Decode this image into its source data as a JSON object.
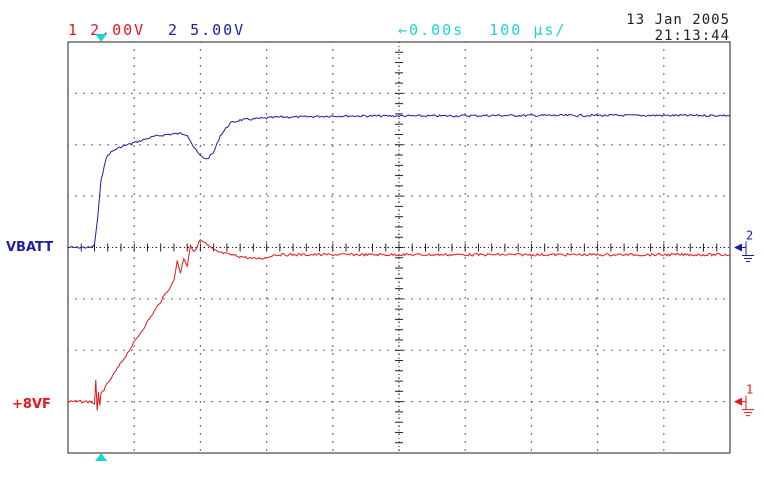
{
  "header": {
    "ch1_num": "1",
    "ch1_scale": "2.00V",
    "ch2_num": "2",
    "ch2_scale": "5.00V",
    "time_offset": "0.00s",
    "time_scale": "100 µs/"
  },
  "date": "13 Jan 2005",
  "time": "21:13:44",
  "labels": {
    "ch2_name": "VBATT",
    "ch1_name": "+8VF",
    "ch2_marker": "2",
    "ch1_marker": "1"
  },
  "colors": {
    "ch1": "#e8161a",
    "ch2": "#1b1fa8",
    "trigger": "#1ed2dc",
    "grid": "#222222"
  },
  "chart_data": {
    "type": "line",
    "grid": {
      "hdiv": 10,
      "vdiv": 8,
      "dotted": true
    },
    "x_unit": "µs",
    "xlim": [
      -50,
      950
    ],
    "trigger_time_us": 0,
    "series": [
      {
        "name": "VBATT",
        "channel": 2,
        "volts_per_div": 5.0,
        "ground_div": 0,
        "x": [
          -50,
          -15,
          -10,
          -5,
          0,
          5,
          10,
          20,
          30,
          40,
          50,
          60,
          80,
          100,
          120,
          130,
          140,
          150,
          160,
          170,
          180,
          195,
          210,
          230,
          250,
          270,
          300,
          350,
          400,
          500,
          600,
          700,
          800,
          900,
          950
        ],
        "y_div": [
          0,
          0,
          0.05,
          0.6,
          1.3,
          1.62,
          1.8,
          1.9,
          1.96,
          2.0,
          2.04,
          2.08,
          2.16,
          2.2,
          2.22,
          2.2,
          1.95,
          1.78,
          1.72,
          1.85,
          2.18,
          2.42,
          2.48,
          2.5,
          2.52,
          2.54,
          2.54,
          2.56,
          2.56,
          2.56,
          2.57,
          2.57,
          2.57,
          2.57,
          2.57
        ]
      },
      {
        "name": "+8VF",
        "channel": 1,
        "volts_per_div": 2.0,
        "ground_div": -3,
        "x": [
          -50,
          -15,
          -10,
          -8,
          -6,
          -4,
          -2,
          0,
          20,
          40,
          60,
          80,
          100,
          110,
          115,
          120,
          125,
          130,
          135,
          140,
          150,
          160,
          170,
          180,
          200,
          230,
          250,
          260,
          280,
          300,
          350,
          400,
          500,
          600,
          700,
          800,
          900,
          950
        ],
        "y_div": [
          0,
          0,
          -0.05,
          0.4,
          -0.2,
          0.2,
          -0.1,
          0.15,
          0.55,
          0.95,
          1.35,
          1.75,
          2.15,
          2.35,
          2.75,
          2.5,
          2.8,
          2.65,
          3.05,
          2.9,
          3.15,
          3.05,
          2.95,
          2.9,
          2.85,
          2.78,
          2.8,
          2.86,
          2.86,
          2.86,
          2.86,
          2.86,
          2.86,
          2.86,
          2.86,
          2.86,
          2.86,
          2.86
        ]
      }
    ]
  }
}
